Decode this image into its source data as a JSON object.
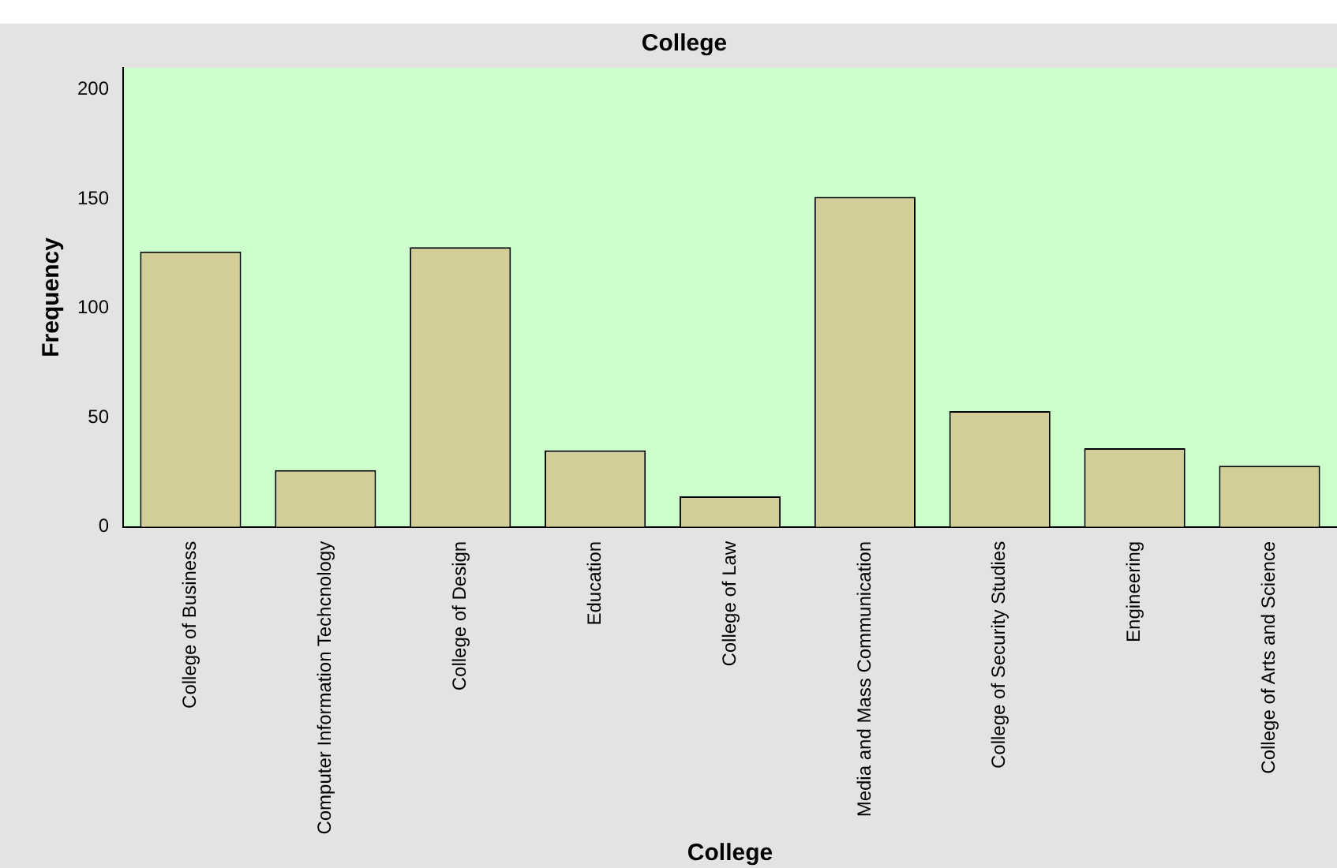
{
  "chart_data": {
    "type": "bar",
    "title": "College",
    "xlabel": "College",
    "ylabel": "Frequency",
    "categories": [
      "College of Business",
      "Computer Information Techcnology",
      "College of Design",
      "Education",
      "College of Law",
      "Media and Mass Communication",
      "College of Security Studies",
      "Engineering",
      "College of Arts and Science"
    ],
    "values": [
      126,
      26,
      128,
      35,
      14,
      151,
      53,
      36,
      28
    ],
    "color": "#d3cd97",
    "ylim": [
      0,
      210
    ],
    "yticks": [
      0,
      50,
      100,
      150,
      200
    ],
    "grid": false,
    "legend": false
  }
}
